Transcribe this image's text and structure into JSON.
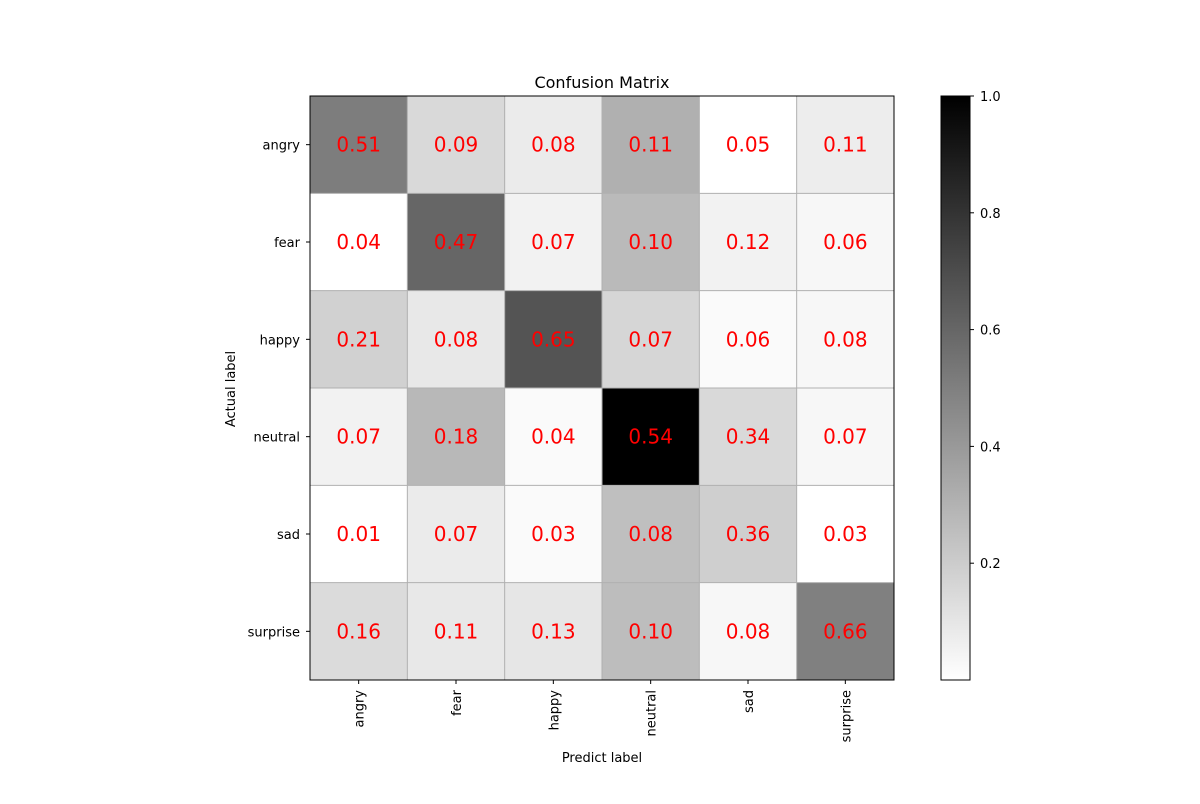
{
  "chart_data": {
    "type": "heatmap",
    "title": "Confusion Matrix",
    "xlabel": "Predict label",
    "ylabel": "Actual label",
    "x_categories": [
      "angry",
      "fear",
      "happy",
      "neutral",
      "sad",
      "surprise"
    ],
    "y_categories": [
      "angry",
      "fear",
      "happy",
      "neutral",
      "sad",
      "surprise"
    ],
    "values": [
      [
        0.51,
        0.09,
        0.08,
        0.11,
        0.05,
        0.11
      ],
      [
        0.04,
        0.47,
        0.07,
        0.1,
        0.12,
        0.06
      ],
      [
        0.21,
        0.08,
        0.65,
        0.07,
        0.06,
        0.08
      ],
      [
        0.07,
        0.18,
        0.04,
        0.54,
        0.34,
        0.07
      ],
      [
        0.01,
        0.07,
        0.03,
        0.08,
        0.36,
        0.03
      ],
      [
        0.16,
        0.11,
        0.13,
        0.1,
        0.08,
        0.66
      ]
    ],
    "cell_values": [
      [
        0.51,
        0.15,
        0.08,
        0.31,
        0.0,
        0.07
      ],
      [
        0.0,
        0.6,
        0.05,
        0.27,
        0.05,
        0.03
      ],
      [
        0.18,
        0.09,
        0.67,
        0.16,
        0.02,
        0.03
      ],
      [
        0.05,
        0.28,
        0.02,
        1.0,
        0.15,
        0.03
      ],
      [
        0.0,
        0.08,
        0.02,
        0.25,
        0.19,
        0.0
      ],
      [
        0.14,
        0.09,
        0.1,
        0.26,
        0.03,
        0.5
      ]
    ],
    "cell_labels": [
      [
        "0.51",
        "0.09",
        "0.08",
        "0.11",
        "0.05",
        "0.11"
      ],
      [
        "0.04",
        "0.47",
        "0.07",
        "0.10",
        "0.12",
        "0.06"
      ],
      [
        "0.21",
        "0.08",
        "0.65",
        "0.07",
        "0.06",
        "0.08"
      ],
      [
        "0.07",
        "0.18",
        "0.04",
        "0.54",
        "0.34",
        "0.07"
      ],
      [
        "0.01",
        "0.07",
        "0.03",
        "0.08",
        "0.36",
        "0.03"
      ],
      [
        "0.16",
        "0.11",
        "0.13",
        "0.10",
        "0.08",
        "0.66"
      ]
    ],
    "colorbar": {
      "range": [
        0.0,
        1.0
      ],
      "ticks": [
        0.2,
        0.4,
        0.6,
        0.8,
        1.0
      ],
      "tick_labels": [
        "0.2",
        "0.4",
        "0.6",
        "0.8",
        "1.0"
      ],
      "colormap": "white-to-black"
    },
    "annotation_color": "#ff0000",
    "grid": true
  }
}
